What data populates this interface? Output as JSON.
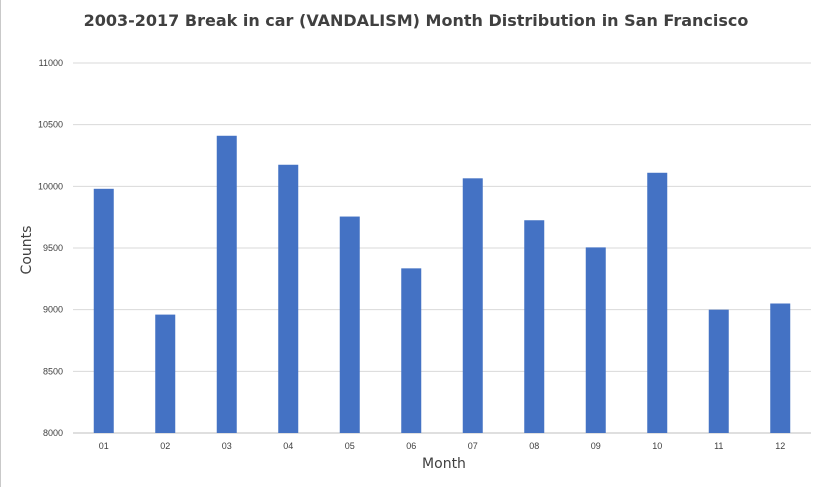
{
  "chart_data": {
    "type": "bar",
    "title": "2003-2017 Break in car (VANDALISM) Month Distribution in San Francisco",
    "xlabel": "Month",
    "ylabel": "Counts",
    "categories": [
      "01",
      "02",
      "03",
      "04",
      "05",
      "06",
      "07",
      "08",
      "09",
      "10",
      "11",
      "12"
    ],
    "values": [
      9980,
      8960,
      10410,
      10175,
      9755,
      9335,
      10065,
      9725,
      9505,
      10110,
      9000,
      9050
    ],
    "ylim": [
      8000,
      11000
    ],
    "yticks": [
      "8000",
      "8500",
      "9000",
      "9500",
      "10000",
      "10500",
      "11000"
    ],
    "grid": true,
    "legend": "none",
    "bar_color": "#4472c4"
  }
}
